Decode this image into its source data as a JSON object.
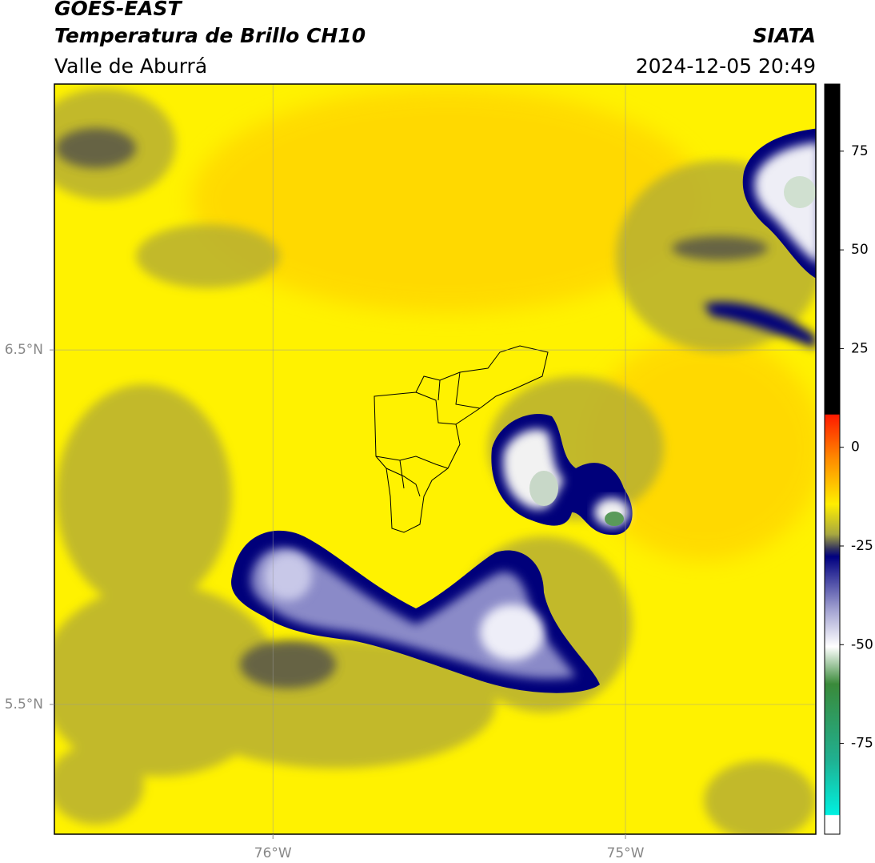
{
  "map": {
    "title": "GOES-EAST",
    "subtitle": "Temperatura de Brillo CH10",
    "region": "Valle de Aburrá",
    "source": "SIATA",
    "timestamp": "2024-12-05 20:49",
    "xlim": [
      -76.62,
      -74.46
    ],
    "ylim": [
      5.134,
      7.25
    ],
    "xticks": [
      {
        "value": -76,
        "label": "76°W"
      },
      {
        "value": -75,
        "label": "75°W"
      }
    ],
    "yticks": [
      {
        "value": 6.5,
        "label": "6.5°N"
      },
      {
        "value": 5.5,
        "label": "5.5°N"
      }
    ],
    "grid": true,
    "colorbar": {
      "lim": [
        -98,
        92
      ],
      "ticks": [
        75,
        50,
        25,
        0,
        -25,
        -50,
        -75
      ]
    }
  }
}
